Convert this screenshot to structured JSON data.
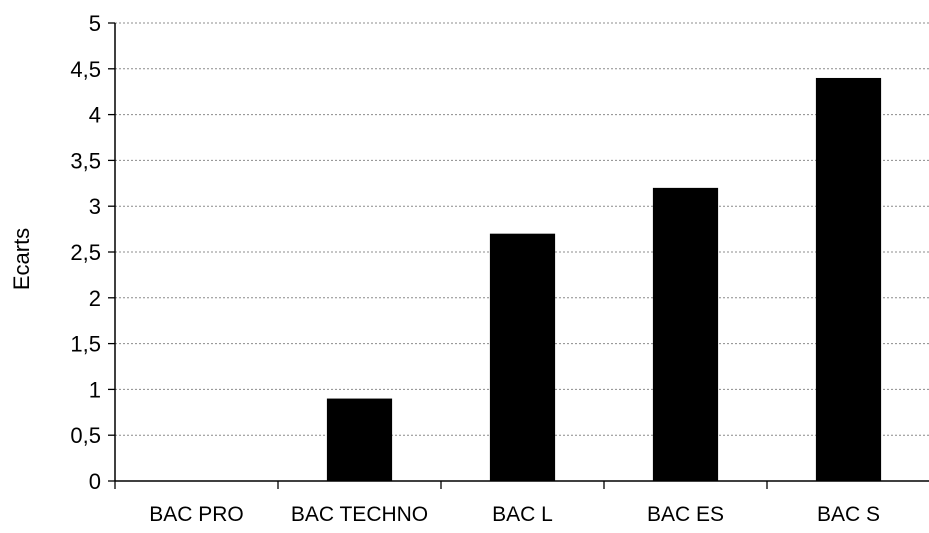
{
  "chart_data": {
    "type": "bar",
    "categories": [
      "BAC PRO",
      "BAC TECHNO",
      "BAC L",
      "BAC ES",
      "BAC S"
    ],
    "values": [
      0,
      0.9,
      2.7,
      3.2,
      4.4
    ],
    "title": "",
    "xlabel": "",
    "ylabel": "Ecarts",
    "ylim": [
      0,
      5
    ],
    "yticks": [
      "0",
      "0,5",
      "1",
      "1,5",
      "2",
      "2,5",
      "3",
      "3,5",
      "4",
      "4,5",
      "5"
    ],
    "grid": true,
    "legend": "none",
    "bar_color": "#000000",
    "grid_color": "#8c8c8c"
  }
}
